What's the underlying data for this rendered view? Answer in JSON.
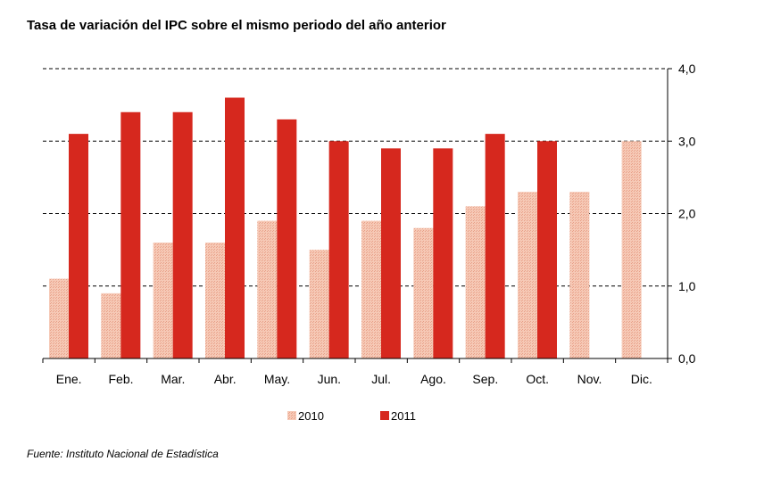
{
  "title": "Tasa de variación del IPC sobre el mismo periodo del año anterior",
  "source": "Fuente: Instituto Nacional de Estadística",
  "colors": {
    "s2010": "#f2b8a2",
    "s2011": "#d6281e"
  },
  "chart_data": {
    "type": "bar",
    "title": "Tasa de variación del IPC sobre el mismo periodo del año anterior",
    "categories": [
      "Ene.",
      "Feb.",
      "Mar.",
      "Abr.",
      "May.",
      "Jun.",
      "Jul.",
      "Ago.",
      "Sep.",
      "Oct.",
      "Nov.",
      "Dic."
    ],
    "series": [
      {
        "name": "2010",
        "values": [
          1.1,
          0.9,
          1.6,
          1.6,
          1.9,
          1.5,
          1.9,
          1.8,
          2.1,
          2.3,
          2.3,
          3.0
        ]
      },
      {
        "name": "2011",
        "values": [
          3.1,
          3.4,
          3.4,
          3.6,
          3.3,
          3.0,
          2.9,
          2.9,
          3.1,
          3.0,
          null,
          null
        ]
      }
    ],
    "yticks": [
      "0,0",
      "1,0",
      "2,0",
      "3,0",
      "4,0"
    ],
    "ylim": [
      0,
      4
    ],
    "y_axis_side": "right",
    "grid": true,
    "legend_position": "bottom"
  }
}
